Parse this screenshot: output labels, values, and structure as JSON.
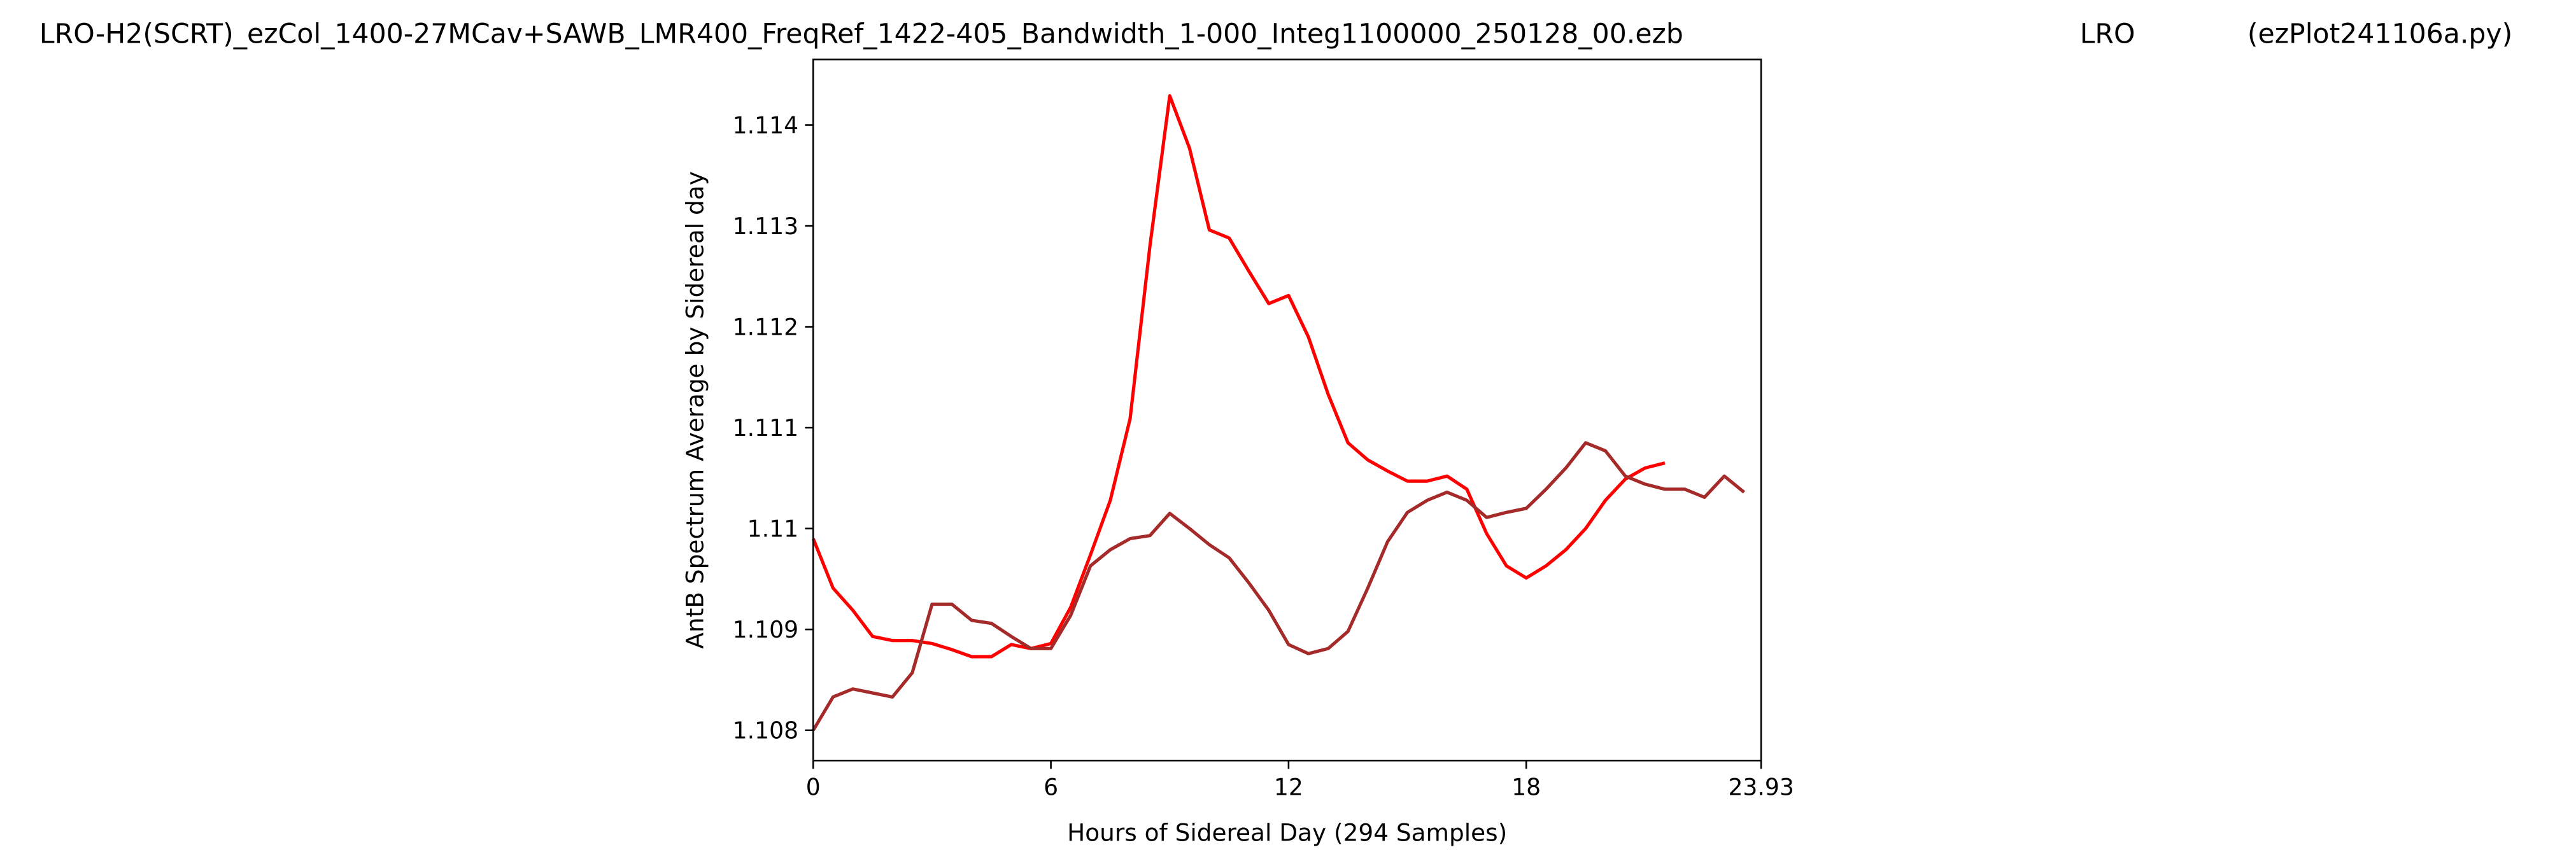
{
  "chart_data": {
    "type": "line",
    "title": "LRO-H2(SCRT)_ezCol_1400-27MCav+SAWB_LMR400_FreqRef_1422-405_Bandwidth_1-000_Integ1100000_250128_00.ezb",
    "annotations": [
      "LRO",
      "(ezPlot241106a.py)"
    ],
    "x_label": "Hours of Sidereal Day  (294 Samples)",
    "y_label": "AntB Spectrum Average by Sidereal day",
    "x": [
      0,
      0.5,
      1,
      1.5,
      2,
      2.5,
      3,
      3.5,
      4,
      4.5,
      5,
      5.5,
      6,
      6.5,
      7,
      7.5,
      8,
      8.5,
      9,
      9.5,
      10,
      10.5,
      11,
      11.5,
      12,
      12.5,
      13,
      13.5,
      14,
      14.5,
      15,
      15.5,
      16,
      16.5,
      17,
      17.5,
      18,
      18.5,
      19,
      19.5,
      20,
      20.5,
      21,
      21.5,
      22,
      22.5,
      23,
      23.5
    ],
    "series": [
      {
        "color": "#ff0000",
        "values": [
          1.1099,
          1.10941,
          1.10919,
          1.10893,
          1.10889,
          1.10889,
          1.10886,
          1.1088,
          1.10873,
          1.10873,
          1.10885,
          1.10881,
          1.10886,
          1.10922,
          1.10974,
          1.11028,
          1.11109,
          1.1128,
          1.11429,
          1.11377,
          1.11296,
          1.11288,
          1.11255,
          1.11223,
          1.11231,
          1.1119,
          1.11133,
          1.11085,
          1.11068,
          1.11057,
          1.11047,
          1.11047,
          1.11052,
          1.11039,
          1.10995,
          1.10963,
          1.10951,
          1.10963,
          1.10979,
          1.11,
          1.11028,
          1.11049,
          1.1106,
          1.11065,
          null,
          null,
          null,
          null
        ]
      },
      {
        "color": "#a52a2a",
        "values": [
          1.108,
          1.10833,
          1.10841,
          1.10837,
          1.10833,
          1.10857,
          1.10925,
          1.10925,
          1.10909,
          1.10906,
          1.10893,
          1.10881,
          1.10881,
          1.10914,
          1.10963,
          1.10979,
          1.1099,
          1.10993,
          1.11015,
          1.11,
          1.10984,
          1.10971,
          1.10946,
          1.10919,
          1.10885,
          1.10876,
          1.10881,
          1.10898,
          1.10941,
          1.10987,
          1.11016,
          1.11028,
          1.11036,
          1.11028,
          1.11011,
          1.11016,
          1.1102,
          1.11039,
          1.1106,
          1.11085,
          1.11077,
          1.11052,
          1.11044,
          1.11039,
          1.11039,
          1.11031,
          1.11052,
          1.11036
        ]
      }
    ],
    "xlim": [
      0,
      23.93
    ],
    "xticks": [
      0,
      6,
      12,
      18,
      23.93
    ],
    "ylim": [
      1.1077,
      1.11465
    ],
    "yticks": [
      1.108,
      1.109,
      1.11,
      1.111,
      1.112,
      1.113,
      1.114
    ],
    "grid": false
  }
}
